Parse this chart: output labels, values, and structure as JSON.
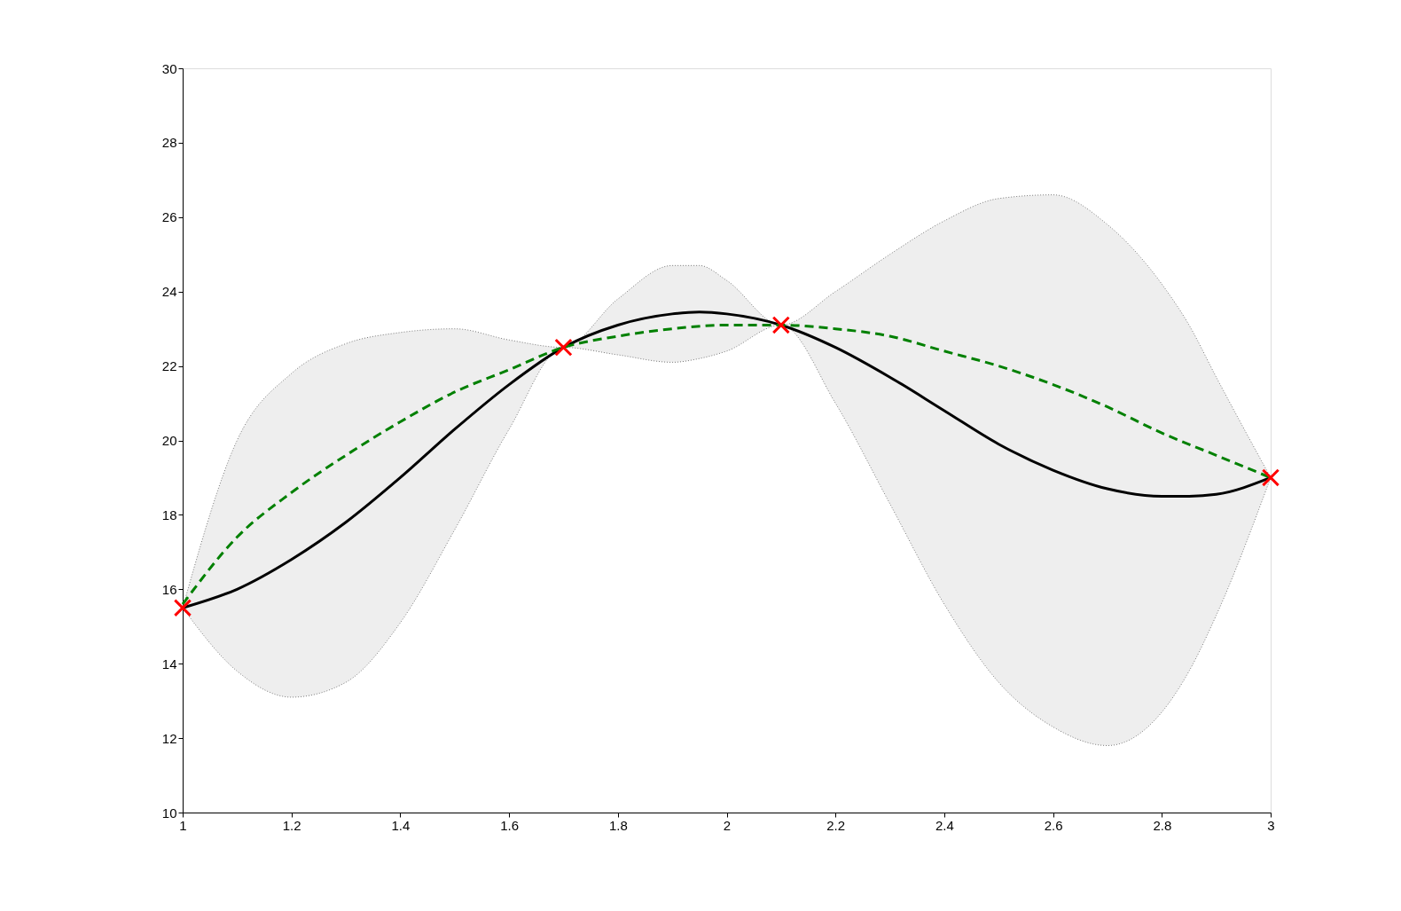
{
  "chart_data": {
    "type": "line",
    "xlim": [
      1,
      3
    ],
    "ylim": [
      10,
      30
    ],
    "xticks": [
      1,
      1.2,
      1.4,
      1.6,
      1.8,
      2,
      2.2,
      2.4,
      2.6,
      2.8,
      3
    ],
    "yticks": [
      10,
      12,
      14,
      16,
      18,
      20,
      22,
      24,
      26,
      28,
      30
    ],
    "grid": false,
    "series": [
      {
        "type": "line",
        "color": "#000000",
        "line_style": "solid",
        "marker": "none",
        "x": [
          1,
          1.1,
          1.2,
          1.3,
          1.4,
          1.5,
          1.6,
          1.7,
          1.8,
          1.9,
          1.95,
          2,
          2.1,
          2.2,
          2.3,
          2.4,
          2.5,
          2.6,
          2.7,
          2.8,
          2.85,
          2.9,
          3
        ],
        "values": [
          15.5,
          16,
          16.8,
          17.8,
          19,
          20.3,
          21.5,
          22.5,
          23.1,
          23.4,
          23.45,
          23.4,
          23.1,
          22.5,
          21.7,
          20.8,
          19.9,
          19.2,
          18.7,
          18.5,
          18.5,
          18.55,
          19
        ],
        "lower": [
          15.5,
          13.8,
          13.1,
          13.5,
          15.1,
          17.6,
          20.3,
          22.5,
          22.3,
          22.1,
          22.2,
          22.4,
          23.1,
          21,
          18.3,
          15.6,
          13.5,
          12.3,
          11.8,
          12.7,
          13.8,
          15.3,
          19
        ],
        "upper": [
          15.5,
          20,
          21.8,
          22.6,
          22.9,
          23,
          22.7,
          22.5,
          23.8,
          24.7,
          24.7,
          24.3,
          23.1,
          24,
          25,
          25.9,
          26.5,
          26.6,
          25.8,
          24.2,
          23.1,
          21.7,
          19
        ]
      },
      {
        "type": "line",
        "color": "#008000",
        "line_style": "dashed",
        "marker": "none",
        "x": [
          1,
          1.1,
          1.2,
          1.3,
          1.4,
          1.5,
          1.6,
          1.7,
          1.8,
          1.9,
          2,
          2.1,
          2.2,
          2.3,
          2.4,
          2.5,
          2.6,
          2.7,
          2.8,
          2.9,
          3
        ],
        "values": [
          15.6,
          17.4,
          18.6,
          19.6,
          20.5,
          21.3,
          21.9,
          22.5,
          22.8,
          23,
          23.1,
          23.1,
          23,
          22.8,
          22.4,
          22,
          21.5,
          20.9,
          20.2,
          19.6,
          19
        ]
      },
      {
        "type": "scatter",
        "color": "#ff0000",
        "marker": "cross",
        "x": [
          1,
          1.7,
          2.1,
          3
        ],
        "values": [
          15.5,
          22.5,
          23.1,
          19
        ]
      }
    ]
  }
}
